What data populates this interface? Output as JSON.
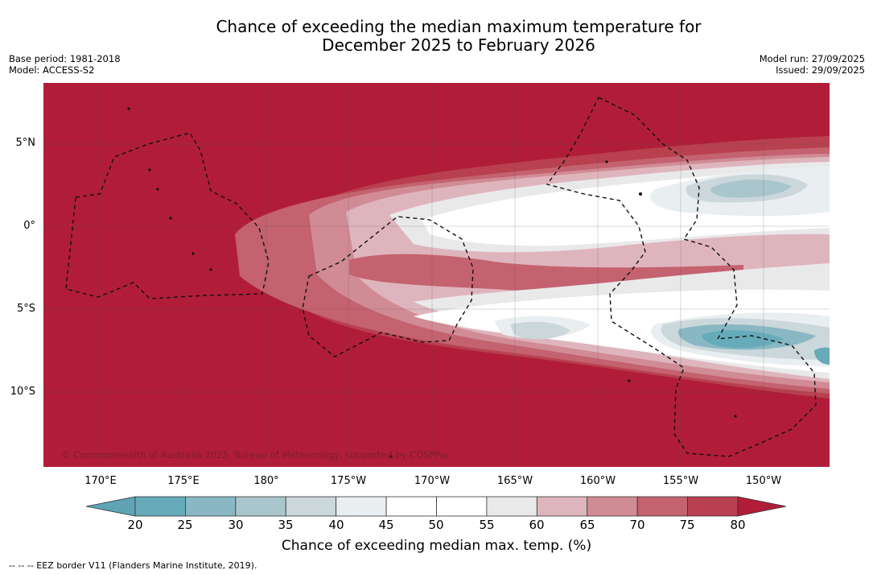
{
  "title_line1": "Chance of exceeding the median maximum temperature for",
  "title_line2": "December 2025 to February 2026",
  "base_period": "Base period: 1981-2018",
  "model": "Model: ACCESS-S2",
  "model_run": "Model run: 27/09/2025",
  "issued": "Issued: 29/09/2025",
  "lat_labels": [
    "5°N",
    "0°",
    "5°S",
    "10°S"
  ],
  "lon_labels": [
    "170°E",
    "175°E",
    "180°",
    "175°W",
    "170°W",
    "165°W",
    "160°W",
    "155°W",
    "150°W"
  ],
  "copyright": "© Commonwealth of Australia 2025, Bureau of Meteorology, supported by COSPPac",
  "colorbar": {
    "ticks": [
      "20",
      "25",
      "30",
      "35",
      "40",
      "45",
      "50",
      "55",
      "60",
      "65",
      "70",
      "75",
      "80"
    ],
    "colors": [
      "#5fa3b5",
      "#67abba",
      "#89b8c4",
      "#a9c6cc",
      "#cbd7da",
      "#e9eef0",
      "#ffffff",
      "#ffffff",
      "#eae9ea",
      "#dfb5bd",
      "#d18b95",
      "#c4626f",
      "#b8404f",
      "#b11d38"
    ],
    "label": "Chance of exceeding median max. temp. (%)"
  },
  "footnote": "--  --  -- EEZ border V11 (Flanders Marine Institute, 2019)."
}
